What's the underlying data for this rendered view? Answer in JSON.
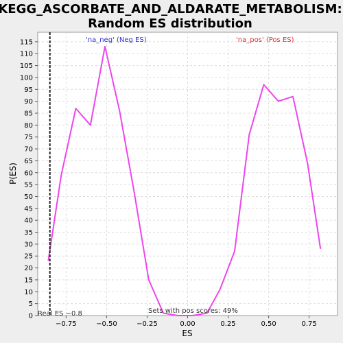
{
  "chart_data": {
    "type": "line",
    "title": [
      "KEGG_ASCORBATE_AND_ALDARATE_METABOLISM:",
      "Random ES distribution"
    ],
    "xlabel": "ES",
    "ylabel": "P(ES)",
    "xlim": [
      -0.925,
      0.925
    ],
    "ylim": [
      0,
      119
    ],
    "x_ticks": [
      -0.75,
      -0.5,
      -0.25,
      0.0,
      0.25,
      0.5,
      0.75
    ],
    "x_tick_labels": [
      "−0.75",
      "−0.50",
      "−0.25",
      "0.00",
      "0.25",
      "0.50",
      "0.75"
    ],
    "y_ticks": [
      0,
      5,
      10,
      15,
      20,
      25,
      30,
      35,
      40,
      45,
      50,
      55,
      60,
      65,
      70,
      75,
      80,
      85,
      90,
      95,
      100,
      105,
      110,
      115
    ],
    "grid": true,
    "series": [
      {
        "name": "P(ES)",
        "color": "#ee44ee",
        "x": [
          -0.86,
          -0.78,
          -0.69,
          -0.6,
          -0.51,
          -0.42,
          -0.33,
          -0.24,
          -0.15,
          -0.06,
          0.03,
          0.12,
          0.2,
          0.29,
          0.38,
          0.47,
          0.56,
          0.65,
          0.74,
          0.82
        ],
        "y": [
          23,
          59,
          87,
          80,
          113,
          86,
          52,
          15,
          1,
          0,
          0,
          1,
          11,
          27,
          76,
          97,
          90,
          92,
          64,
          28
        ]
      }
    ],
    "legend": {
      "neg_label": "'na_neg' (Neg ES)",
      "neg_color": "#3333cc",
      "pos_label": "'na_pos' (Pos ES)",
      "pos_color": "#dd3333"
    },
    "real_es": {
      "value": -0.85,
      "label": "Real ES −0.8"
    },
    "pos_scores_label": "Sets with pos scores: 49%"
  }
}
